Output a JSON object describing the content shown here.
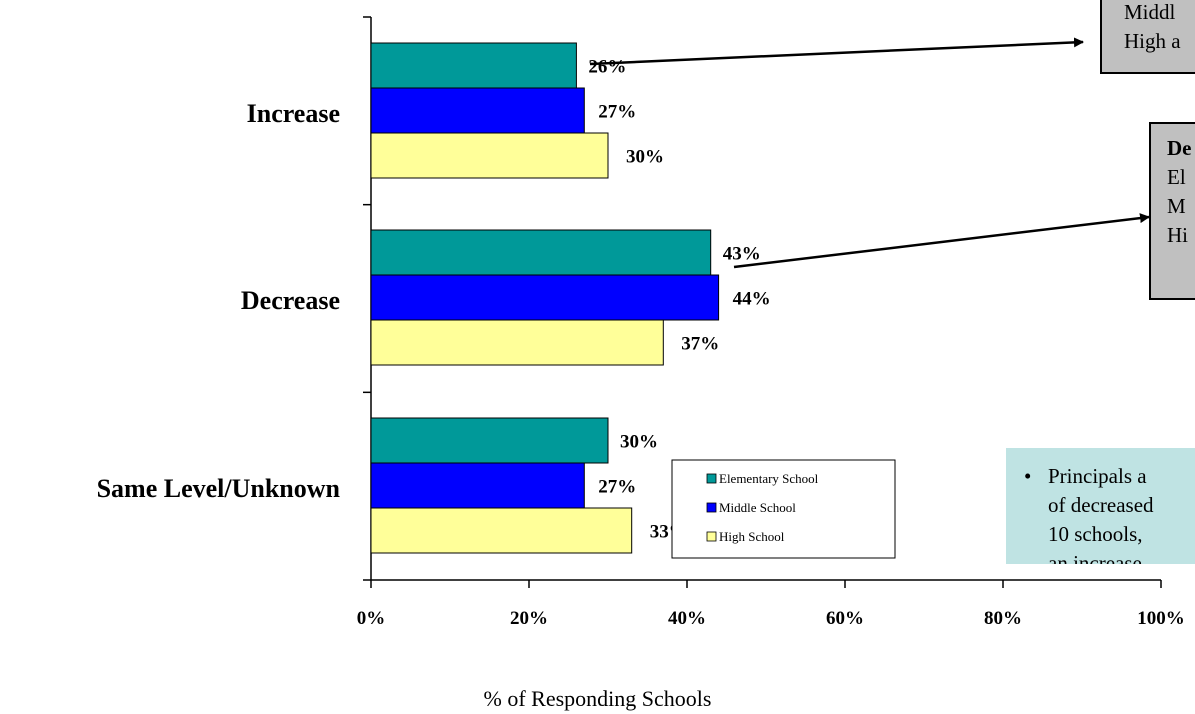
{
  "chart_data": {
    "type": "bar",
    "orientation": "horizontal",
    "categories": [
      "Increase",
      "Decrease",
      "Same Level/Unknown"
    ],
    "series": [
      {
        "name": "Elementary School",
        "color": "#009999",
        "values": [
          26,
          43,
          30
        ],
        "labels": [
          "26%",
          "43%",
          "30%"
        ]
      },
      {
        "name": "Middle School",
        "color": "#0000ff",
        "values": [
          27,
          44,
          27
        ],
        "labels": [
          "27%",
          "44%",
          "27%"
        ]
      },
      {
        "name": "High School",
        "color": "#ffff99",
        "values": [
          30,
          37,
          33
        ],
        "labels": [
          "30%",
          "37%",
          "33%"
        ]
      }
    ],
    "xlim": [
      0,
      100
    ],
    "x_ticks": [
      "0%",
      "20%",
      "40%",
      "60%",
      "80%",
      "100%"
    ],
    "xlabel": "% of Responding Schools",
    "ylabel": "",
    "legend": "bottom-center, inside plot",
    "grid": false
  },
  "callouts": {
    "increase": {
      "lines": [
        "Middl",
        "High a"
      ]
    },
    "decrease": {
      "title": "De",
      "lines": [
        "El",
        "M",
        "Hi"
      ]
    }
  },
  "note": {
    "bullet": "•",
    "lines": [
      "Principals a",
      "of decreased",
      "10 schools,",
      "an increase"
    ]
  },
  "colors": {
    "callout_bg": "#c0c0c0",
    "note_bg": "#bfe3e3"
  }
}
